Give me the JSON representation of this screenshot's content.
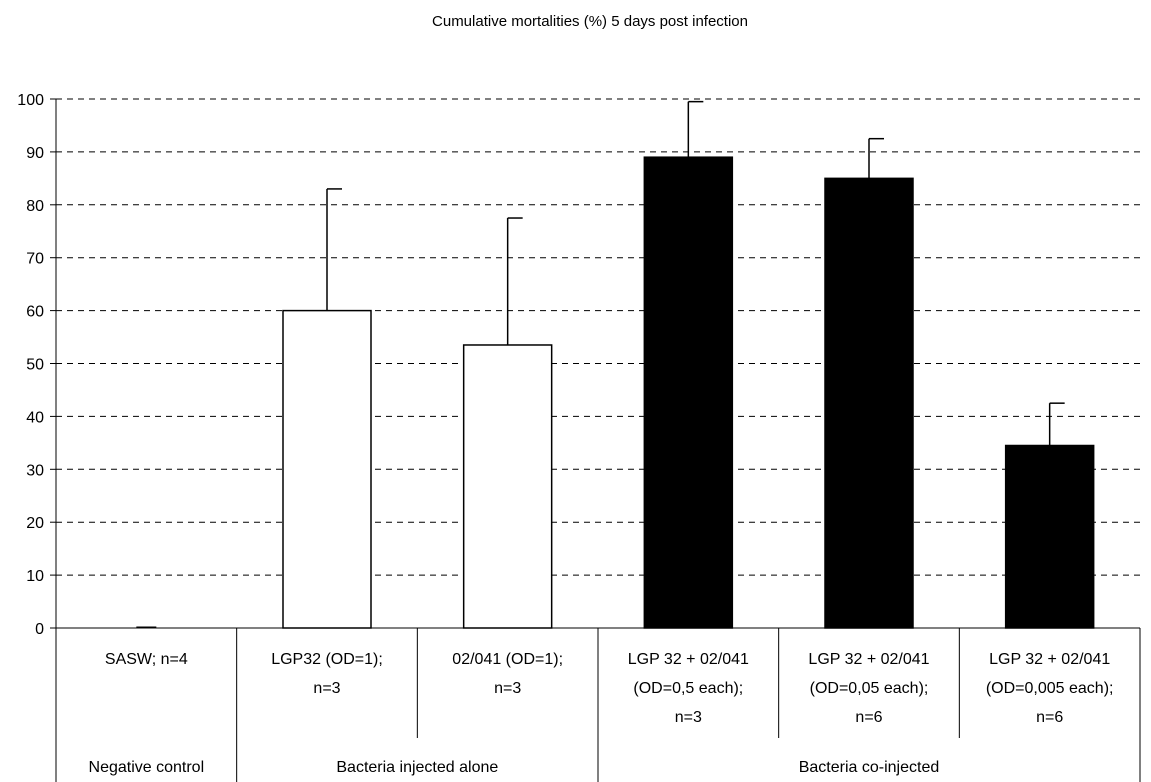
{
  "chart_data": {
    "type": "bar",
    "title": "Cumulative mortalities (%) 5 days post infection",
    "xlabel": "",
    "ylabel": "",
    "ylim": [
      0,
      100
    ],
    "yticks": [
      "0",
      "10",
      "20",
      "30",
      "40",
      "50",
      "60",
      "70",
      "80",
      "90",
      "100"
    ],
    "grid": "horizontal dashed",
    "categories": [
      [
        "SASW; n=4"
      ],
      [
        "LGP32 (OD=1);",
        "n=3"
      ],
      [
        "02/041 (OD=1);",
        "n=3"
      ],
      [
        "LGP 32 + 02/041",
        "(OD=0,5 each);",
        "n=3"
      ],
      [
        "LGP 32 + 02/041",
        "(OD=0,05 each);",
        "n=6"
      ],
      [
        "LGP 32 + 02/041",
        "(OD=0,005 each);",
        "n=6"
      ]
    ],
    "values": [
      0,
      60,
      53.5,
      89,
      85,
      34.5
    ],
    "errors": [
      0,
      23,
      24,
      10.5,
      7.5,
      8
    ],
    "bar_colors": [
      "#ffffff",
      "#ffffff",
      "#ffffff",
      "#000000",
      "#000000",
      "#000000"
    ],
    "groups": [
      {
        "label": "Negative control",
        "span": [
          0,
          0
        ]
      },
      {
        "label": "Bacteria injected alone",
        "span": [
          1,
          2
        ]
      },
      {
        "label": "Bacteria co-injected",
        "span": [
          3,
          5
        ]
      }
    ]
  }
}
